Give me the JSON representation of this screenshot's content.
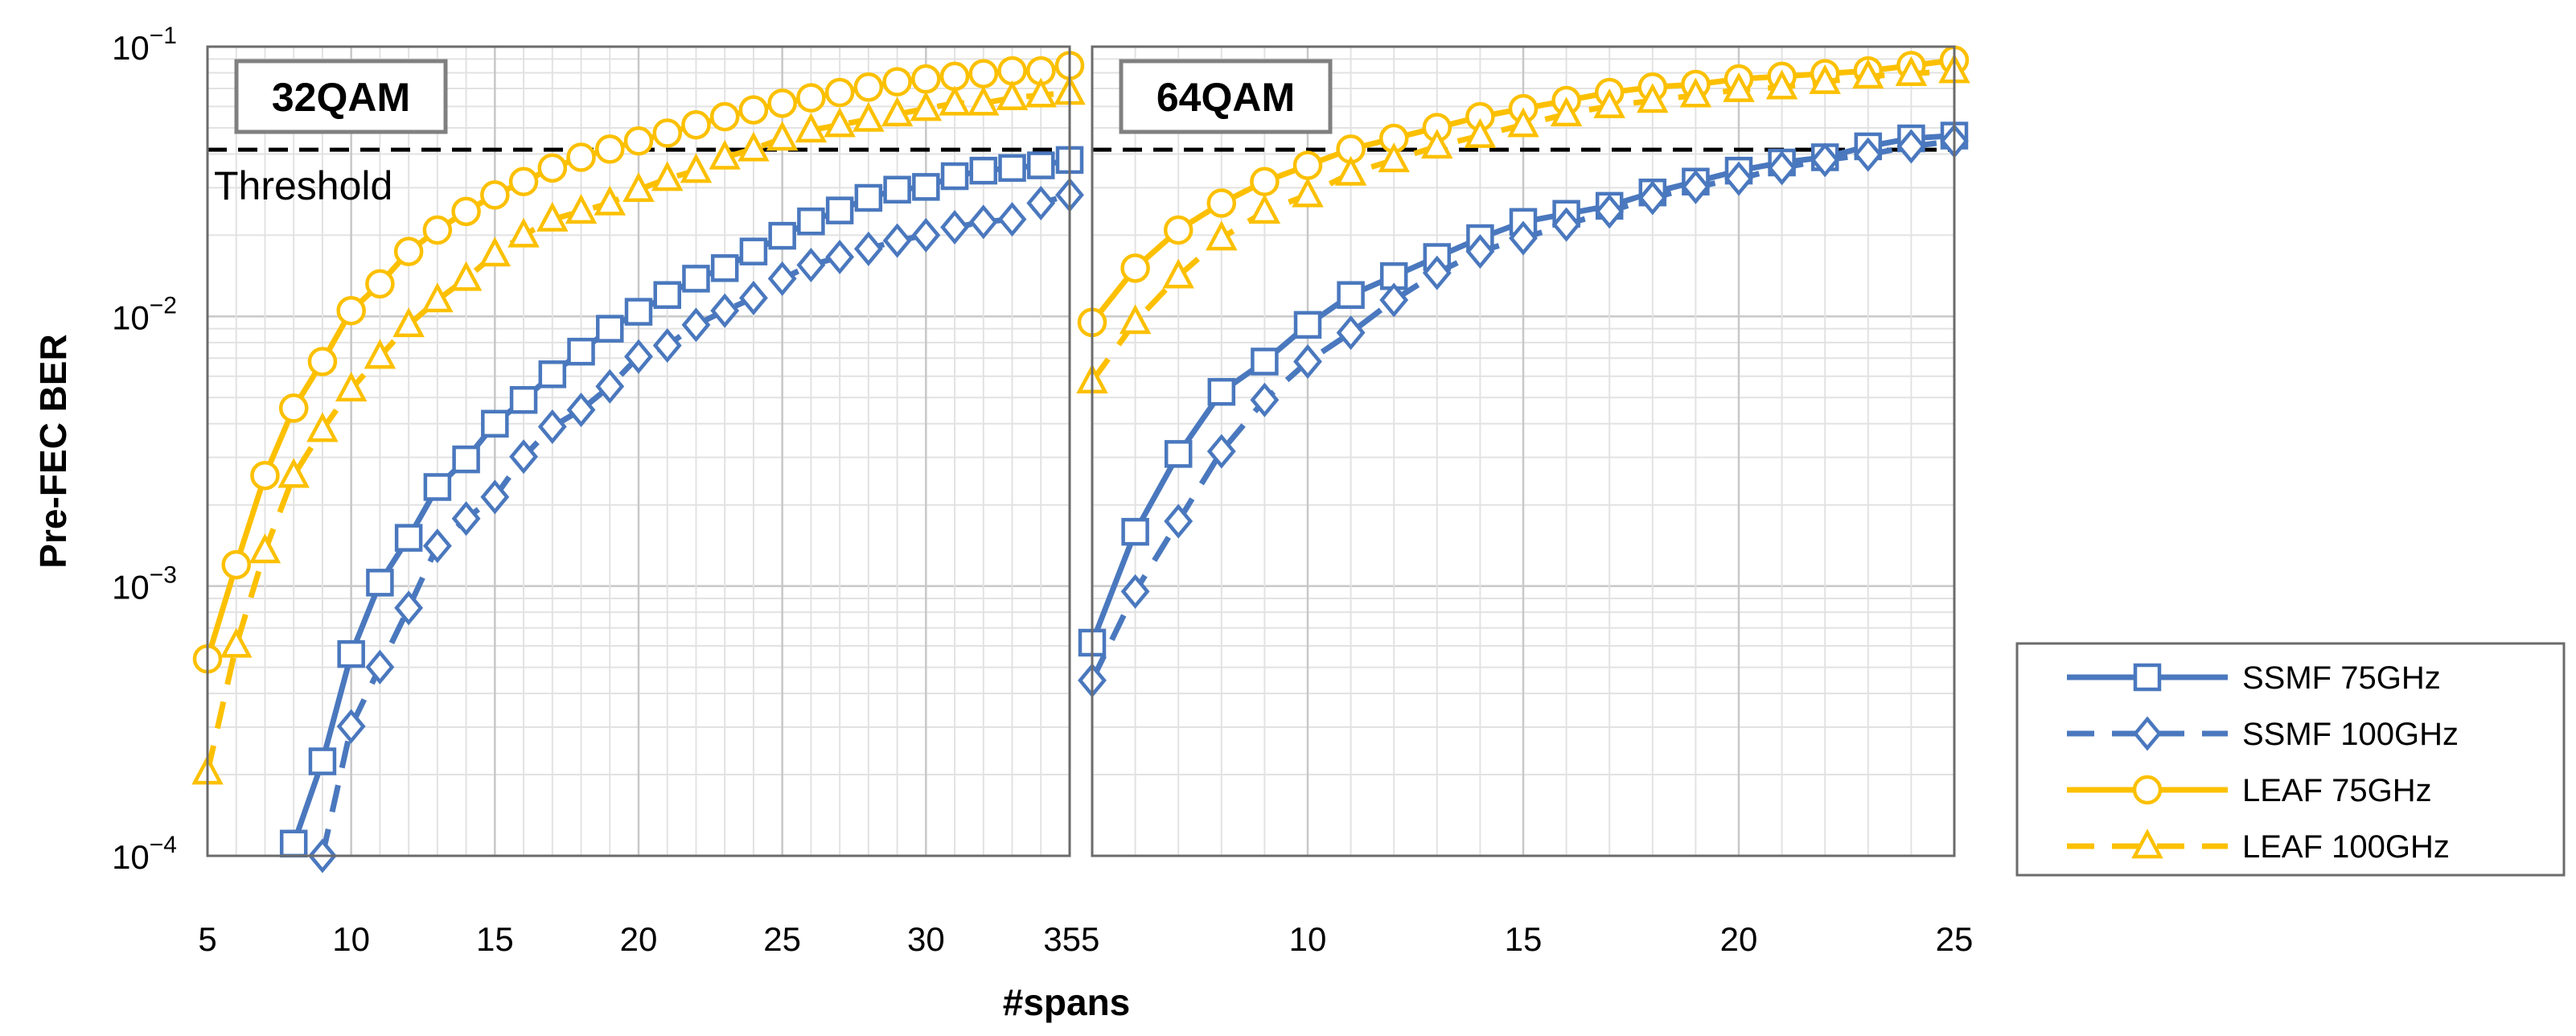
{
  "chart_data": {
    "type": "line",
    "y_axis": {
      "label": "Pre-FEC BER",
      "scale": "log",
      "range": [
        0.0001,
        0.1
      ],
      "tick_labels": [
        {
          "value": 0.1,
          "base": "10",
          "exp": "−1"
        },
        {
          "value": 0.01,
          "base": "10",
          "exp": "−2"
        },
        {
          "value": 0.001,
          "base": "10",
          "exp": "−3"
        },
        {
          "value": 0.0001,
          "base": "10",
          "exp": "−4"
        }
      ]
    },
    "x_axis": {
      "label": "#spans"
    },
    "threshold": {
      "label": "Threshold",
      "value": 0.0415
    },
    "legend": [
      {
        "name": "SSMF 75GHz",
        "color": "#4a78be",
        "dash": "solid",
        "marker": "square"
      },
      {
        "name": "SSMF 100GHz",
        "color": "#4a78be",
        "dash": "dashed",
        "marker": "diamond"
      },
      {
        "name": "LEAF 75GHz",
        "color": "#fcc000",
        "dash": "solid",
        "marker": "circle"
      },
      {
        "name": "LEAF 100GHz",
        "color": "#fcc000",
        "dash": "dashed",
        "marker": "triangle"
      }
    ],
    "panels": [
      {
        "title": "32QAM",
        "xlim": [
          5,
          35
        ],
        "xticks": [
          "5",
          "10",
          "15",
          "20",
          "25",
          "30",
          "35"
        ],
        "series": [
          {
            "name": "SSMF 75GHz",
            "x": [
              8,
              9,
              10,
              11,
              12,
              13,
              14,
              15,
              16,
              17,
              18,
              19,
              20,
              21,
              22,
              23,
              24,
              25,
              26,
              27,
              28,
              29,
              30,
              31,
              32,
              33,
              34,
              35
            ],
            "values": [
              0.000111,
              0.000224,
              0.00056,
              0.00103,
              0.00151,
              0.00233,
              0.00295,
              0.004,
              0.0049,
              0.0061,
              0.0074,
              0.009,
              0.0104,
              0.012,
              0.0138,
              0.0151,
              0.0174,
              0.0199,
              0.0225,
              0.0247,
              0.0275,
              0.0295,
              0.0302,
              0.0331,
              0.0347,
              0.0355,
              0.0363,
              0.038
            ]
          },
          {
            "name": "SSMF 100GHz",
            "x": [
              9,
              10,
              11,
              12,
              13,
              14,
              15,
              16,
              17,
              18,
              19,
              20,
              21,
              22,
              23,
              24,
              25,
              26,
              27,
              28,
              29,
              30,
              31,
              32,
              33,
              34,
              35
            ],
            "values": [
              0.0001,
              0.000302,
              0.000501,
              0.00083,
              0.00141,
              0.00178,
              0.00214,
              0.00302,
              0.0039,
              0.0045,
              0.0055,
              0.0071,
              0.0078,
              0.0093,
              0.0105,
              0.0117,
              0.0138,
              0.0155,
              0.0166,
              0.0178,
              0.0191,
              0.02,
              0.0214,
              0.0224,
              0.0229,
              0.0263,
              0.0282
            ]
          },
          {
            "name": "LEAF 75GHz",
            "x": [
              5,
              6,
              7,
              8,
              9,
              10,
              11,
              12,
              13,
              14,
              15,
              16,
              17,
              18,
              19,
              20,
              21,
              22,
              23,
              24,
              25,
              26,
              27,
              28,
              29,
              30,
              31,
              32,
              33,
              34,
              35
            ],
            "values": [
              0.000537,
              0.0012,
              0.00257,
              0.00457,
              0.0068,
              0.0105,
              0.0132,
              0.0174,
              0.0209,
              0.0245,
              0.0282,
              0.0316,
              0.0355,
              0.0389,
              0.0417,
              0.0447,
              0.0478,
              0.0513,
              0.055,
              0.0583,
              0.0617,
              0.0646,
              0.0676,
              0.0708,
              0.0741,
              0.0759,
              0.0776,
              0.0794,
              0.0813,
              0.0813,
              0.0851
            ]
          },
          {
            "name": "LEAF 100GHz",
            "x": [
              5,
              6,
              7,
              8,
              9,
              10,
              11,
              12,
              13,
              14,
              15,
              16,
              17,
              18,
              19,
              20,
              21,
              22,
              23,
              24,
              25,
              26,
              27,
              28,
              29,
              30,
              31,
              32,
              33,
              34,
              35
            ],
            "values": [
              0.000204,
              0.000603,
              0.00135,
              0.00257,
              0.0038,
              0.00537,
              0.0071,
              0.0093,
              0.0115,
              0.0138,
              0.017,
              0.02,
              0.0229,
              0.0245,
              0.0263,
              0.0295,
              0.0324,
              0.0347,
              0.0389,
              0.0417,
              0.0457,
              0.049,
              0.0513,
              0.0537,
              0.0562,
              0.0589,
              0.0617,
              0.0617,
              0.0646,
              0.0661,
              0.0676
            ]
          }
        ]
      },
      {
        "title": "64QAM",
        "xlim": [
          5,
          25
        ],
        "xticks": [
          "5",
          "10",
          "15",
          "20",
          "25"
        ],
        "series": [
          {
            "name": "SSMF 75GHz",
            "x": [
              5,
              6,
              7,
              8,
              9,
              10,
              11,
              12,
              13,
              14,
              15,
              16,
              17,
              18,
              19,
              20,
              21,
              22,
              23,
              24,
              25
            ],
            "values": [
              0.000617,
              0.00159,
              0.00309,
              0.00525,
              0.0068,
              0.0093,
              0.012,
              0.0141,
              0.0166,
              0.0195,
              0.0224,
              0.024,
              0.0257,
              0.0288,
              0.0316,
              0.0347,
              0.0372,
              0.0389,
              0.0427,
              0.0457,
              0.0468
            ]
          },
          {
            "name": "SSMF 100GHz",
            "x": [
              5,
              6,
              7,
              8,
              9,
              10,
              11,
              12,
              13,
              14,
              15,
              16,
              17,
              18,
              19,
              20,
              21,
              22,
              23,
              24,
              25
            ],
            "values": [
              0.000447,
              0.000955,
              0.00174,
              0.00316,
              0.0049,
              0.0068,
              0.0087,
              0.0115,
              0.0145,
              0.0174,
              0.0195,
              0.0219,
              0.0245,
              0.0275,
              0.0302,
              0.0324,
              0.0355,
              0.038,
              0.0398,
              0.0427,
              0.0447
            ]
          },
          {
            "name": "LEAF 75GHz",
            "x": [
              5,
              6,
              7,
              8,
              9,
              10,
              11,
              12,
              13,
              14,
              15,
              16,
              17,
              18,
              19,
              20,
              21,
              22,
              23,
              24,
              25
            ],
            "values": [
              0.0095,
              0.0151,
              0.0209,
              0.0263,
              0.0316,
              0.0363,
              0.0417,
              0.0457,
              0.0501,
              0.055,
              0.0589,
              0.0631,
              0.0676,
              0.0708,
              0.0724,
              0.0759,
              0.0776,
              0.0794,
              0.0813,
              0.0851,
              0.0891
            ]
          },
          {
            "name": "LEAF 100GHz",
            "x": [
              5,
              6,
              7,
              8,
              9,
              10,
              11,
              12,
              13,
              14,
              15,
              16,
              17,
              18,
              19,
              20,
              21,
              22,
              23,
              24,
              25
            ],
            "values": [
              0.00575,
              0.00955,
              0.0141,
              0.0195,
              0.0245,
              0.0282,
              0.0339,
              0.038,
              0.0427,
              0.0468,
              0.0513,
              0.0562,
              0.0603,
              0.0631,
              0.0661,
              0.0692,
              0.0708,
              0.0741,
              0.0776,
              0.0794,
              0.0813
            ]
          }
        ]
      }
    ]
  }
}
